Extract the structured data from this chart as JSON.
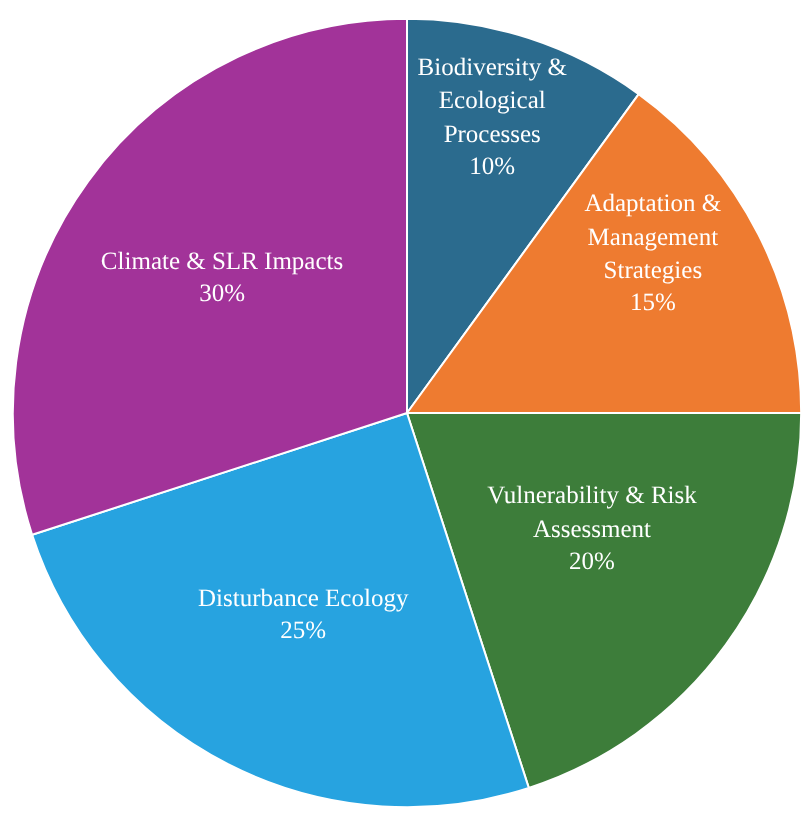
{
  "chart_data": {
    "type": "pie",
    "categories": [
      "Biodiversity &\nEcological\nProcesses",
      "Adaptation &\nManagement\nStrategies",
      "Vulnerability & Risk\nAssessment",
      "Disturbance Ecology",
      "Climate & SLR Impacts"
    ],
    "values": [
      10,
      15,
      20,
      25,
      30
    ],
    "value_labels": [
      "10%",
      "15%",
      "20%",
      "25%",
      "30%"
    ],
    "colors": [
      "#2b6b8e",
      "#ee7b30",
      "#3d7d3a",
      "#27a3e0",
      "#a23399"
    ]
  }
}
